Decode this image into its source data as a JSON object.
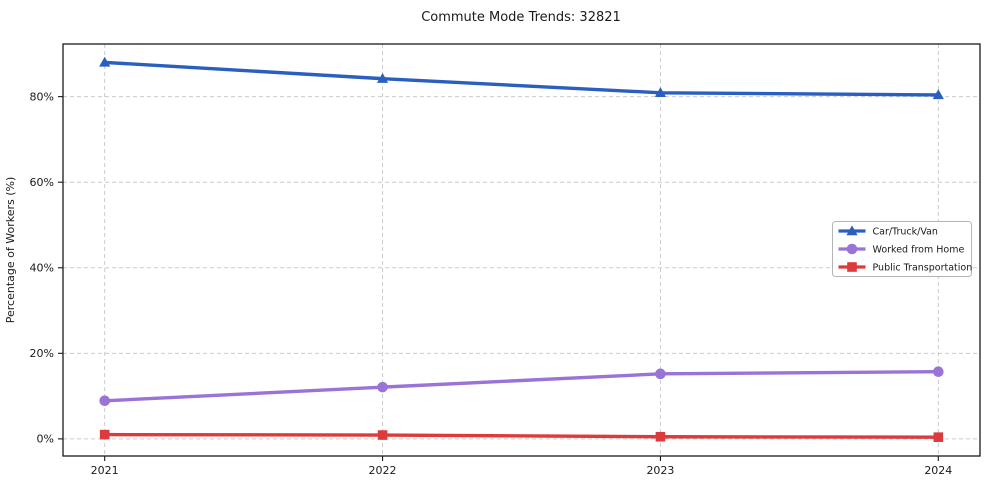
{
  "chart_data": {
    "type": "line",
    "title": "Commute Mode Trends: 32821",
    "xlabel": "",
    "ylabel": "Percentage of Workers (%)",
    "x": [
      2021,
      2022,
      2023,
      2024
    ],
    "x_tick_labels": [
      "2021",
      "2022",
      "2023",
      "2024"
    ],
    "y_ticks": [
      0,
      20,
      40,
      60,
      80
    ],
    "y_tick_labels": [
      "0%",
      "20%",
      "40%",
      "60%",
      "80%"
    ],
    "xlim": [
      2020.85,
      2024.15
    ],
    "ylim": [
      -4,
      92.3
    ],
    "grid": true,
    "grid_style": "dashed",
    "legend_position": "center-right",
    "series": [
      {
        "name": "Car/Truck/Van",
        "marker": "triangle",
        "color": "#2a5fbf",
        "values": [
          88.0,
          84.2,
          80.9,
          80.4
        ]
      },
      {
        "name": "Worked from Home",
        "marker": "circle",
        "color": "#9a73d6",
        "values": [
          8.9,
          12.1,
          15.2,
          15.7
        ]
      },
      {
        "name": "Public Transportation",
        "marker": "square",
        "color": "#dc3a3c",
        "values": [
          1.0,
          0.9,
          0.5,
          0.4
        ]
      }
    ],
    "colors": {
      "grid": "#cbcbcb",
      "spine": "#1a1a1a",
      "tick_text": "#1a1a1a",
      "legend_border": "#b5b5b5",
      "background": "#ffffff"
    }
  }
}
